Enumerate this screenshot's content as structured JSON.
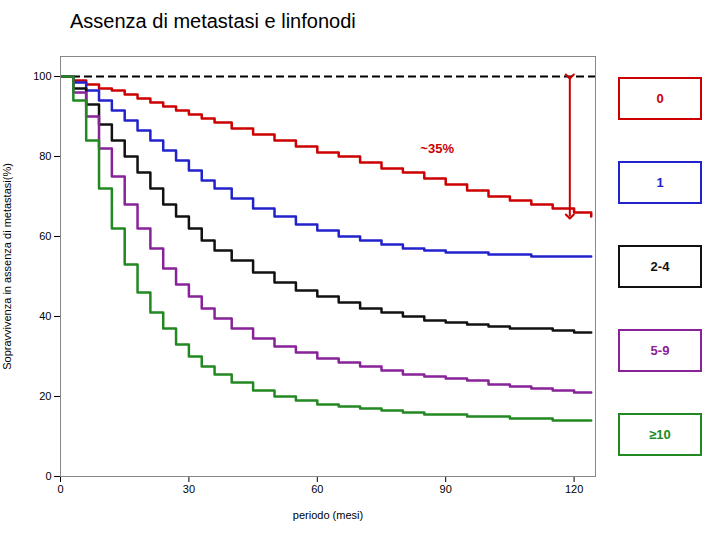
{
  "chart_data": {
    "type": "step",
    "title": "Assenza di metastasi e linfonodi",
    "xlabel": "periodo (mesi)",
    "ylabel": "Sopravvivenza in assenza di metastasi(%)",
    "x": [
      0,
      3,
      6,
      9,
      12,
      15,
      18,
      21,
      24,
      27,
      30,
      33,
      36,
      40,
      45,
      50,
      55,
      60,
      65,
      70,
      75,
      80,
      85,
      90,
      95,
      100,
      105,
      110,
      115,
      120,
      124
    ],
    "series": [
      {
        "name": "0",
        "color": "#cc0000",
        "values": [
          100,
          99,
          98,
          97,
          96.5,
          95.5,
          94.5,
          93.5,
          92.5,
          91.5,
          90.5,
          89.5,
          88.5,
          87,
          85.5,
          84,
          82.5,
          81,
          80,
          78.5,
          77,
          76,
          74.5,
          73,
          71.5,
          70,
          69,
          68,
          67,
          66,
          65
        ]
      },
      {
        "name": "1",
        "color": "#2222cc",
        "values": [
          100,
          98.5,
          96.5,
          94,
          91.5,
          89,
          86.5,
          84,
          81.5,
          79,
          76.5,
          74,
          72,
          69.5,
          67,
          65,
          63,
          61.5,
          60,
          59,
          58,
          57,
          56.5,
          56,
          56,
          55.5,
          55.5,
          55,
          55,
          55,
          55
        ]
      },
      {
        "name": "2-4",
        "color": "#111111",
        "values": [
          100,
          97,
          93,
          88,
          84,
          80,
          76,
          72,
          68,
          65,
          62,
          59,
          56.5,
          54,
          51,
          48.5,
          46.5,
          45,
          43.5,
          42,
          41,
          40,
          39,
          38.5,
          38,
          37.5,
          37,
          37,
          36.5,
          36,
          36
        ]
      },
      {
        "name": "5-9",
        "color": "#882299",
        "values": [
          100,
          96,
          90,
          82,
          75,
          68,
          62,
          57,
          52,
          48,
          45,
          42,
          39.5,
          37,
          34.5,
          32.5,
          31,
          29.5,
          28.5,
          27.5,
          26.5,
          25.5,
          25,
          24.5,
          24,
          23,
          22.5,
          22,
          21.5,
          21,
          21
        ]
      },
      {
        "name": "≥10",
        "color": "#228822",
        "values": [
          100,
          94,
          84,
          72,
          62,
          53,
          46,
          41,
          37,
          33,
          30,
          27.5,
          25.5,
          23.5,
          21.5,
          20,
          19,
          18,
          17.5,
          17,
          16.5,
          16,
          15.5,
          15.5,
          15,
          15,
          14.5,
          14.5,
          14,
          14,
          14
        ]
      }
    ],
    "xlim": [
      0,
      125
    ],
    "ylim": [
      0,
      105
    ],
    "xticks": [
      0,
      30,
      60,
      90,
      120
    ],
    "yticks": [
      0,
      20,
      40,
      60,
      80,
      100
    ],
    "grid": false,
    "legend": "right",
    "reference_lines": [
      {
        "y": 100,
        "color": "#000000",
        "line_style": "dashed"
      }
    ],
    "annotations": [
      {
        "text": "~35%",
        "color": "#cc0000",
        "x": 88,
        "y": 82,
        "arrow": {
          "x": 119,
          "y_start": 100,
          "y_end": 65
        }
      }
    ]
  }
}
